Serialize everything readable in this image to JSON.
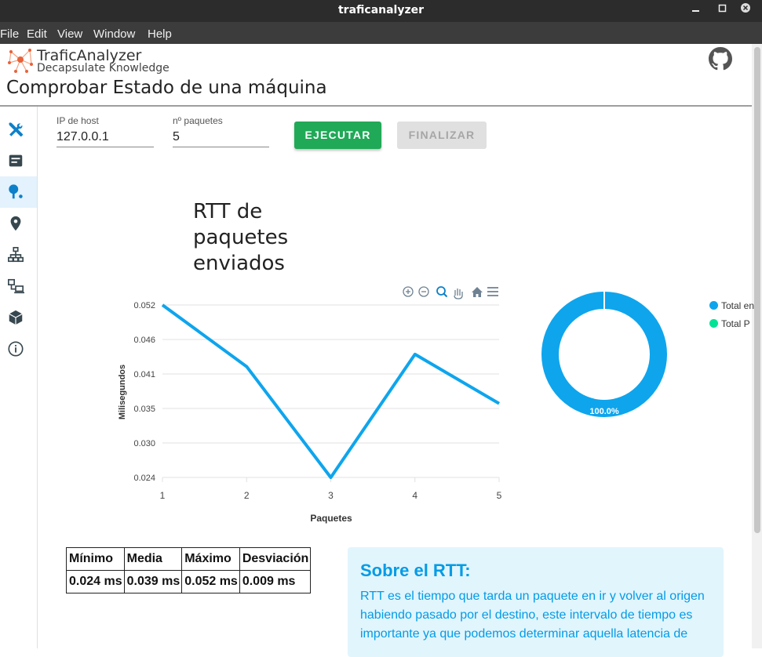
{
  "window": {
    "title": "traficanalyzer",
    "minimize": "_",
    "maximize": "□",
    "close": "●"
  },
  "menu": [
    "File",
    "Edit",
    "View",
    "Window",
    "Help"
  ],
  "brand": {
    "name": "TraficAnalyzer",
    "tagline": "Decapsulate Knowledge"
  },
  "page": {
    "title": "Comprobar Estado de una máquina"
  },
  "sidebar": {
    "items": [
      {
        "icon": "tools-icon"
      },
      {
        "icon": "server-icon"
      },
      {
        "icon": "ping-icon",
        "active": true
      },
      {
        "icon": "location-pin-icon"
      },
      {
        "icon": "network-icon"
      },
      {
        "icon": "devices-icon"
      },
      {
        "icon": "cube-icon"
      },
      {
        "icon": "info-icon"
      }
    ]
  },
  "form": {
    "host_label": "IP de host",
    "host_value": "127.0.0.1",
    "packets_label": "nº paquetes",
    "packets_value": "5",
    "run_label": "EJECUTAR",
    "stop_label": "FINALIZAR"
  },
  "colors": {
    "accent": "#0ea5ed",
    "run_button": "#20a957",
    "info_text": "#039be5",
    "info_bg": "#e1f5fd",
    "legend_green": "#00e396"
  },
  "chart_data": [
    {
      "type": "line",
      "title": "RTT de paquetes enviados",
      "xlabel": "Paquetes",
      "ylabel": "Milisegundos",
      "x": [
        1,
        2,
        3,
        4,
        5
      ],
      "values": [
        0.052,
        0.042,
        0.024,
        0.044,
        0.036
      ],
      "yticks": [
        "0.052",
        "0.046",
        "0.041",
        "0.035",
        "0.030",
        "0.024"
      ],
      "ylim": [
        0.024,
        0.052
      ],
      "grid": true,
      "series_color": "#0ea5ed"
    },
    {
      "type": "pie",
      "values": [
        100,
        0
      ],
      "labels": [
        "Total en",
        "Total P"
      ],
      "data_label": "100.0%",
      "colors": [
        "#0ea5ed",
        "#00e396"
      ],
      "legend": "right"
    }
  ],
  "stats": {
    "headers": [
      "Mínimo",
      "Media",
      "Máximo",
      "Desviación"
    ],
    "values": [
      "0.024 ms",
      "0.039 ms",
      "0.052 ms",
      "0.009 ms"
    ]
  },
  "info": {
    "title": "Sobre el RTT:",
    "text": "RTT es el tiempo que tarda un paquete en ir y volver al origen habiendo pasado por el destino, este intervalo de tiempo es importante ya que podemos determinar aquella latencia de"
  }
}
